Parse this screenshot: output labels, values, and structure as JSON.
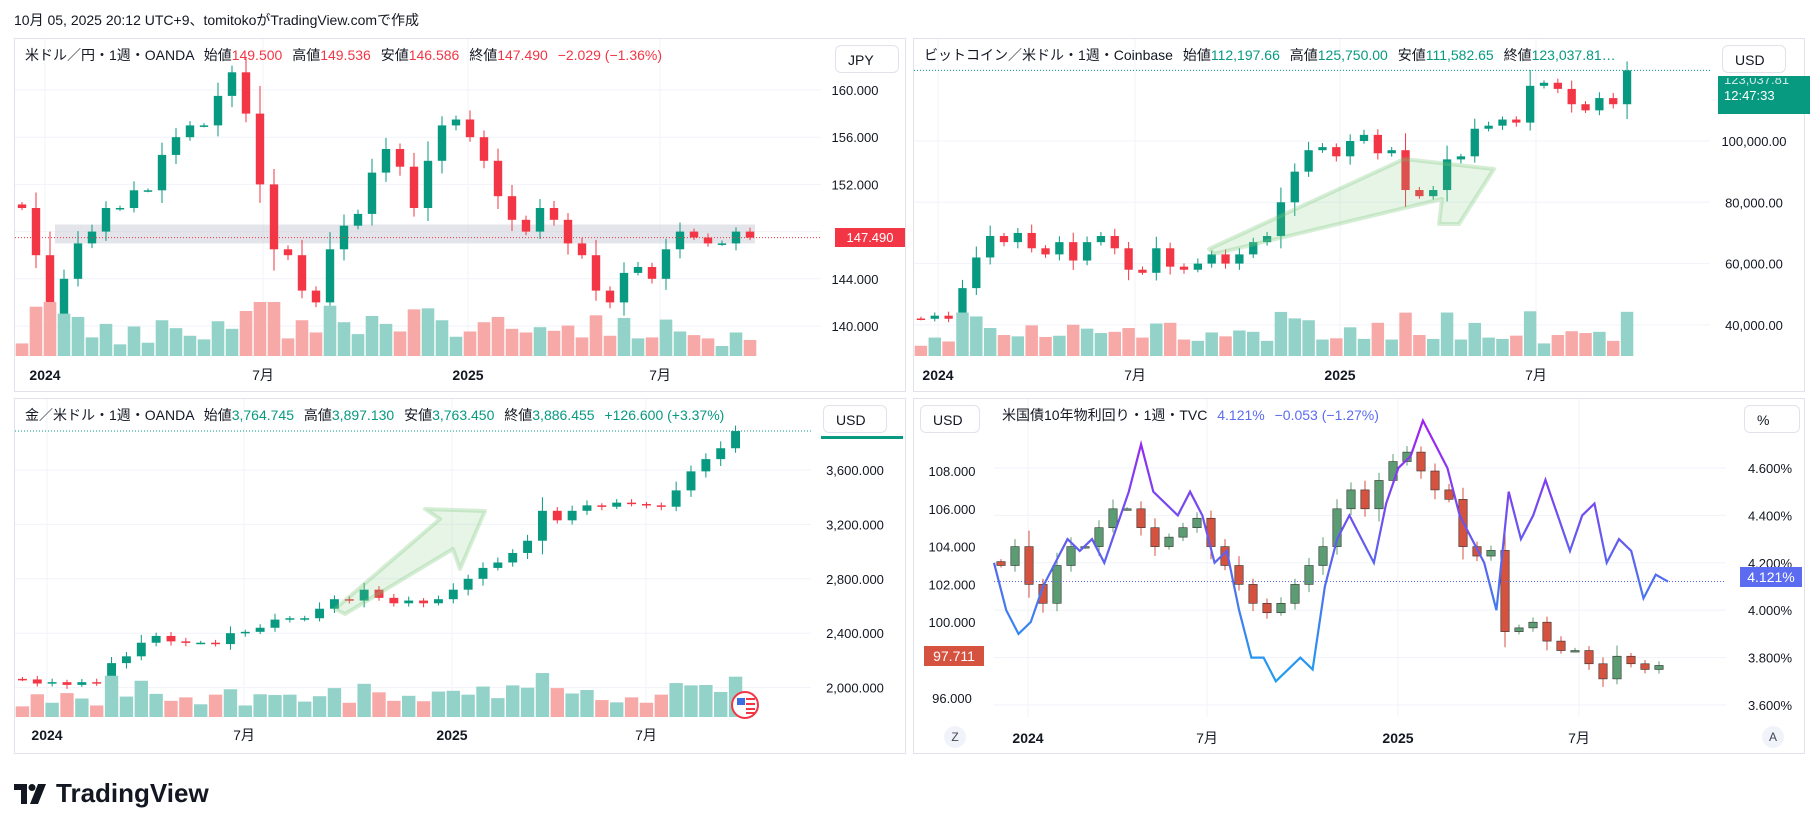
{
  "caption": "10月 05, 2025 20:12 UTC+9、tomitokoがTradingView.comで作成",
  "brand": "TradingView",
  "colors": {
    "up": "#089981",
    "down": "#f23645",
    "up_vol": "#92d2c9",
    "down_vol": "#f7a9a7",
    "yield_line": "#7b5cf5",
    "dxy_up": "#5b9c72",
    "dxy_down": "#d5523f"
  },
  "labels": {
    "open": "始値",
    "high": "高値",
    "low": "安値",
    "close": "終値"
  },
  "charts": [
    {
      "id": "usdjpy",
      "title": "米ドル／円・1週・OANDA",
      "open": "149.500",
      "high": "149.536",
      "low": "146.586",
      "close": "147.490",
      "change": "−2.029 (−1.36%)",
      "value_color": "#f23645",
      "currency": "JPY",
      "last_price_label": "147.490",
      "y_ticks": [
        "160.000",
        "156.000",
        "152.000",
        "144.000",
        "140.000"
      ],
      "x_ticks": [
        "2024",
        "7月",
        "2025",
        "7月"
      ],
      "chart_data": {
        "type": "candlestick",
        "ylim": [
          137,
          163
        ],
        "closes": [
          150,
          146,
          141,
          144,
          147,
          148,
          150,
          150,
          151.5,
          151.5,
          154.5,
          156,
          157,
          157,
          159.5,
          161.5,
          158,
          152,
          146.5,
          146,
          143,
          142,
          146.5,
          148.5,
          149.5,
          153,
          155,
          153.5,
          150,
          154,
          157,
          157.5,
          156,
          154,
          151,
          149,
          148,
          150,
          149,
          147,
          146,
          143,
          142,
          144.5,
          145,
          144,
          146.5,
          148,
          147.5,
          147,
          147,
          148,
          147.49
        ],
        "zone": [
          147,
          148.6
        ]
      }
    },
    {
      "id": "btcusd",
      "title": "ビットコイン／米ドル・1週・Coinbase",
      "open": "112,197.66",
      "high": "125,750.00",
      "low": "111,582.65",
      "close": "123,037.81…",
      "value_color": "#089981",
      "currency": "USD",
      "last_price_label": "123,037.81",
      "countdown": "12:47:33",
      "y_ticks": [
        "100,000.00",
        "80,000.00",
        "60,000.00",
        "40,000.00"
      ],
      "x_ticks": [
        "2024",
        "7月",
        "2025",
        "7月"
      ],
      "chart_data": {
        "type": "candlestick",
        "ylim": [
          30000,
          130000
        ],
        "closes": [
          42000,
          43000,
          42000,
          52000,
          62000,
          69000,
          67000,
          70000,
          65000,
          63000,
          67000,
          61000,
          67000,
          69000,
          65000,
          58000,
          57000,
          65000,
          59000,
          58000,
          60000,
          63000,
          60000,
          63000,
          67000,
          69000,
          80000,
          90000,
          97000,
          98000,
          95000,
          100000,
          102000,
          96000,
          97000,
          84000,
          82000,
          84000,
          94000,
          95000,
          104000,
          105000,
          107000,
          106000,
          118000,
          119000,
          117000,
          112000,
          110000,
          114000,
          112000,
          123037.81
        ]
      }
    },
    {
      "id": "xauusd",
      "title": "金／米ドル・1週・OANDA",
      "open": "3,764.745",
      "high": "3,897.130",
      "low": "3,763.450",
      "close": "3,886.455",
      "change": "+126.600 (+3.37%)",
      "value_color": "#089981",
      "currency": "USD",
      "y_ticks": [
        "3,600.000",
        "3,200.000",
        "2,800.000",
        "2,400.000",
        "2,000.000"
      ],
      "x_ticks": [
        "2024",
        "7月",
        "2025",
        "7月"
      ],
      "chart_data": {
        "type": "candlestick",
        "ylim": [
          1800,
          3950
        ],
        "closes": [
          2060,
          2030,
          2040,
          2020,
          2040,
          2030,
          2180,
          2230,
          2330,
          2380,
          2340,
          2330,
          2330,
          2320,
          2400,
          2410,
          2440,
          2500,
          2510,
          2510,
          2580,
          2650,
          2640,
          2720,
          2660,
          2620,
          2640,
          2620,
          2650,
          2720,
          2800,
          2880,
          2920,
          2990,
          3080,
          3300,
          3230,
          3300,
          3340,
          3330,
          3360,
          3350,
          3340,
          3330,
          3450,
          3590,
          3680,
          3760,
          3886.455
        ]
      }
    },
    {
      "id": "us10y",
      "title": "米国債10年物利回り・1週・TVC",
      "value": "4.121%",
      "change": "−0.053 (−1.27%)",
      "value_color": "#5b6cf0",
      "left_currency": "USD",
      "right_unit": "%",
      "last_yield_label": "4.121%",
      "last_dxy_label": "97.711",
      "left_ticks": [
        "108.000",
        "106.000",
        "104.000",
        "102.000",
        "100.000",
        "96.000"
      ],
      "right_ticks": [
        "4.600%",
        "4.400%",
        "4.200%",
        "4.000%",
        "3.800%",
        "3.600%"
      ],
      "x_ticks": [
        "2024",
        "7月",
        "2025",
        "7月"
      ],
      "z_button": "Z",
      "a_button": "A",
      "chart_data": {
        "type": "candlestick+line",
        "dxy_closes": [
          103,
          104,
          102,
          101,
          103,
          104,
          104,
          105,
          106,
          106,
          105,
          104,
          104.5,
          105,
          105.5,
          104,
          103,
          102,
          101,
          100.5,
          101,
          102,
          103,
          104,
          106,
          107,
          106,
          107.5,
          108.5,
          109,
          108,
          107,
          106.5,
          104,
          103.5,
          103.8,
          99.5,
          99.7,
          100,
          99,
          98.5,
          98.5,
          97.8,
          97,
          98.2,
          97.8,
          97.5,
          97.711
        ],
        "yield_values": [
          4.2,
          4.0,
          3.9,
          3.95,
          4.1,
          4.2,
          4.3,
          4.25,
          4.3,
          4.2,
          4.35,
          4.5,
          4.7,
          4.5,
          4.45,
          4.4,
          4.5,
          4.4,
          4.2,
          4.25,
          4.0,
          3.8,
          3.8,
          3.7,
          3.75,
          3.8,
          3.75,
          4.1,
          4.3,
          4.4,
          4.3,
          4.2,
          4.45,
          4.6,
          4.65,
          4.8,
          4.7,
          4.6,
          4.4,
          4.3,
          4.2,
          4.0,
          4.5,
          4.3,
          4.4,
          4.55,
          4.4,
          4.25,
          4.4,
          4.45,
          4.2,
          4.3,
          4.25,
          4.05,
          4.15,
          4.121
        ]
      }
    }
  ]
}
